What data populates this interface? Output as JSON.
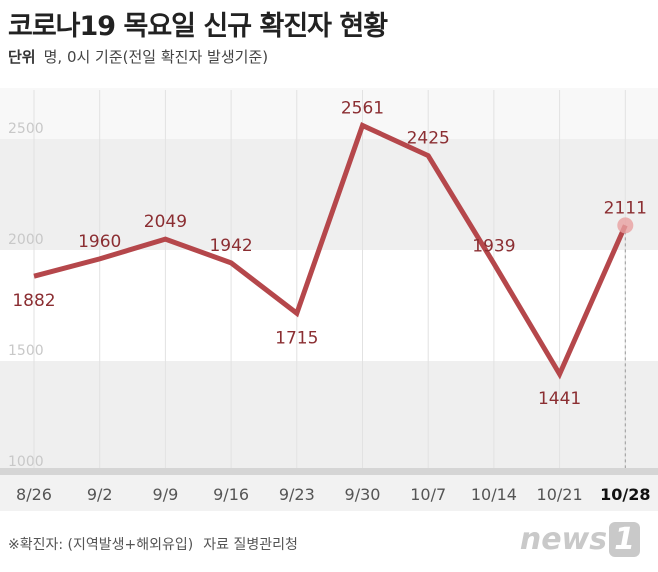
{
  "header": {
    "title": "코로나19 목요일 신규 확진자 현황",
    "unit_label": "단위",
    "unit_text": "명, 0시 기준(전일 확진자 발생기준)"
  },
  "footer": {
    "note": "※확진자: (지역발생+해외유입)",
    "source_label": "자료",
    "source": "질병관리청",
    "logo": "news1"
  },
  "colors": {
    "line": "#b5474b",
    "band": "#efefef",
    "highlight": "#e8a0a0"
  },
  "chart_data": {
    "type": "line",
    "categories": [
      "8/26",
      "9/2",
      "9/9",
      "9/16",
      "9/23",
      "9/30",
      "10/7",
      "10/14",
      "10/21",
      "10/28"
    ],
    "values": [
      1882,
      1960,
      2049,
      1942,
      1715,
      2561,
      2425,
      1939,
      1441,
      2111
    ],
    "yticks": [
      1000,
      1500,
      2000,
      2500
    ],
    "ylim": [
      1000,
      2500
    ],
    "highlight_category": "10/28",
    "grid": "alternating bands"
  }
}
